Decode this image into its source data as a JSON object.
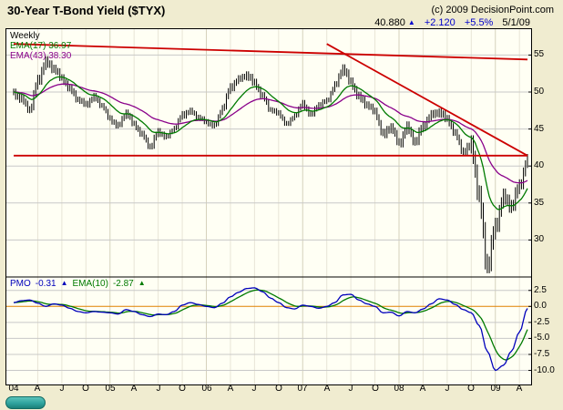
{
  "header": {
    "title": "30-Year T-Bond Yield ($TYX)",
    "copyright": "(c) 2009 DecisionPoint.com",
    "quote": {
      "last": "40.880",
      "arrow": "▲",
      "change": "+2.120",
      "change_pct": "+5.5%",
      "date": "5/1/09"
    }
  },
  "main_panel": {
    "timeframe_label": "Weekly",
    "ema17_label": "EMA(17) 36.97",
    "ema43_label": "EMA(43) 38.30"
  },
  "pmo_panel": {
    "pmo_label": "PMO",
    "pmo_value": "-0.31",
    "pmo_arrow": "▲",
    "ema_label": "EMA(10)",
    "ema_value": "-2.87",
    "ema_arrow": "▲"
  },
  "colors": {
    "page_bg": "#F0ECD0",
    "plot_bg": "#FFFFF4",
    "bars": "#000000",
    "ema17": "#007A00",
    "ema43": "#8A008A",
    "trendline": "#CC0000",
    "pmo_line": "#0000BB",
    "pmo_ema": "#007A00",
    "zero_line": "#E08000",
    "grid": "#C8C8C8",
    "grid_quarter": "#E8E5D6",
    "grid_year": "#D6D2BC",
    "up_blue": "#0000CC",
    "logo_teal": "#2FA39E"
  },
  "x_axis": {
    "ticks": [
      {
        "label": "04",
        "m": 0
      },
      {
        "label": "A",
        "m": 3
      },
      {
        "label": "J",
        "m": 6
      },
      {
        "label": "O",
        "m": 9
      },
      {
        "label": "05",
        "m": 12
      },
      {
        "label": "A",
        "m": 15
      },
      {
        "label": "J",
        "m": 18
      },
      {
        "label": "O",
        "m": 21
      },
      {
        "label": "06",
        "m": 24
      },
      {
        "label": "A",
        "m": 27
      },
      {
        "label": "J",
        "m": 30
      },
      {
        "label": "O",
        "m": 33
      },
      {
        "label": "07",
        "m": 36
      },
      {
        "label": "A",
        "m": 39
      },
      {
        "label": "J",
        "m": 42
      },
      {
        "label": "O",
        "m": 45
      },
      {
        "label": "08",
        "m": 48
      },
      {
        "label": "A",
        "m": 51
      },
      {
        "label": "J",
        "m": 54
      },
      {
        "label": "O",
        "m": 57
      },
      {
        "label": "09",
        "m": 60
      },
      {
        "label": "A",
        "m": 63
      }
    ]
  },
  "chart_data": {
    "type": "ohlc",
    "title": "30-Year T-Bond Yield ($TYX)",
    "timeframe": "Weekly",
    "x_range": [
      "2004-01",
      "2009-05"
    ],
    "price": {
      "y_ticks": [
        {
          "label": "55",
          "value": 55
        },
        {
          "label": "50",
          "value": 50
        },
        {
          "label": "45",
          "value": 45
        },
        {
          "label": "40",
          "value": 40
        },
        {
          "label": "35",
          "value": 35
        },
        {
          "label": "30",
          "value": 30
        }
      ],
      "y_range": [
        25,
        58.5
      ],
      "close_monthly": {
        "2004": [
          49.8,
          49.0,
          47.6,
          51.5,
          54.0,
          53.2,
          51.8,
          50.4,
          49.0,
          48.3,
          49.3,
          48.2
        ],
        "2005": [
          46.3,
          45.4,
          47.2,
          45.6,
          44.2,
          42.6,
          44.6,
          43.9,
          45.1,
          46.9,
          47.4,
          46.6
        ],
        "2006": [
          45.9,
          45.4,
          47.8,
          50.6,
          51.7,
          52.3,
          51.2,
          49.4,
          47.6,
          47.1,
          45.6,
          46.8
        ],
        "2007": [
          48.4,
          46.9,
          48.3,
          48.8,
          50.8,
          53.2,
          51.3,
          49.3,
          48.3,
          47.3,
          44.2,
          45.3
        ],
        "2008": [
          43.0,
          45.2,
          43.3,
          45.4,
          46.9,
          47.3,
          46.3,
          44.3,
          41.9,
          42.8,
          35.5,
          26.4
        ],
        "2009": [
          31.8,
          35.8,
          34.6,
          37.3,
          40.88
        ]
      },
      "weekly_halfrange_monthly": {
        "2004": [
          0.9,
          0.8,
          0.9,
          1.1,
          1.0,
          0.9,
          0.8,
          0.8,
          0.7,
          0.7,
          0.7,
          0.6
        ],
        "2005": [
          0.7,
          0.7,
          0.8,
          0.7,
          0.7,
          0.8,
          0.7,
          0.6,
          0.6,
          0.7,
          0.6,
          0.6
        ],
        "2006": [
          0.6,
          0.6,
          0.8,
          0.8,
          0.7,
          0.9,
          0.8,
          0.7,
          0.6,
          0.6,
          0.6,
          0.6
        ],
        "2007": [
          0.7,
          0.7,
          0.6,
          0.6,
          0.8,
          1.0,
          0.9,
          0.9,
          0.8,
          0.8,
          1.0,
          0.9
        ],
        "2008": [
          1.0,
          1.0,
          1.1,
          0.9,
          0.8,
          0.9,
          0.8,
          0.8,
          1.0,
          1.8,
          2.2,
          2.0
        ],
        "2009": [
          1.6,
          1.4,
          1.5,
          1.2,
          0.9
        ]
      },
      "last": 40.88,
      "change": 2.12,
      "change_pct": 5.5,
      "date": "5/1/09",
      "ema17_last": 36.97,
      "ema43_last": 38.3
    },
    "pmo": {
      "y_ticks": [
        {
          "label": "2.5",
          "value": 2.5
        },
        {
          "label": "0.0",
          "value": 0
        },
        {
          "label": "-2.5",
          "value": -2.5
        },
        {
          "label": "-5.0",
          "value": -5
        },
        {
          "label": "-7.5",
          "value": -7.5
        },
        {
          "label": "-10.0",
          "value": -10
        }
      ],
      "y_range": [
        -12.2,
        4.6
      ],
      "monthly": {
        "2004": [
          0.6,
          0.9,
          1.0,
          0.5,
          0.0,
          0.4,
          0.2,
          -0.3,
          -0.8,
          -1.0,
          -0.8,
          -0.9
        ],
        "2005": [
          -1.0,
          -1.2,
          -0.5,
          -0.8,
          -1.3,
          -1.6,
          -1.2,
          -1.3,
          -0.8,
          0.2,
          0.6,
          0.3
        ],
        "2006": [
          0.0,
          -0.2,
          0.5,
          1.5,
          2.2,
          2.8,
          2.9,
          2.3,
          1.3,
          0.6,
          -0.2,
          -0.4
        ],
        "2007": [
          0.2,
          0.0,
          -0.3,
          0.0,
          0.6,
          1.8,
          1.9,
          1.0,
          0.4,
          0.0,
          -1.0,
          -0.9
        ],
        "2008": [
          -1.5,
          -0.8,
          -1.0,
          -0.4,
          0.4,
          1.2,
          1.0,
          0.3,
          -0.5,
          -1.0,
          -3.0,
          -7.0
        ],
        "2009": [
          -10.0,
          -9.2,
          -7.0,
          -4.0,
          -0.31
        ]
      },
      "last": -0.31,
      "ema10_last": -2.87
    },
    "trendlines": [
      {
        "m1": 0,
        "v1": 56.5,
        "m2": 64,
        "v2": 54.4
      },
      {
        "m1": 39,
        "v1": 56.5,
        "m2": 64,
        "v2": 41.4
      },
      {
        "m1": 0,
        "v1": 41.4,
        "m2": 64,
        "v2": 41.4
      }
    ]
  }
}
